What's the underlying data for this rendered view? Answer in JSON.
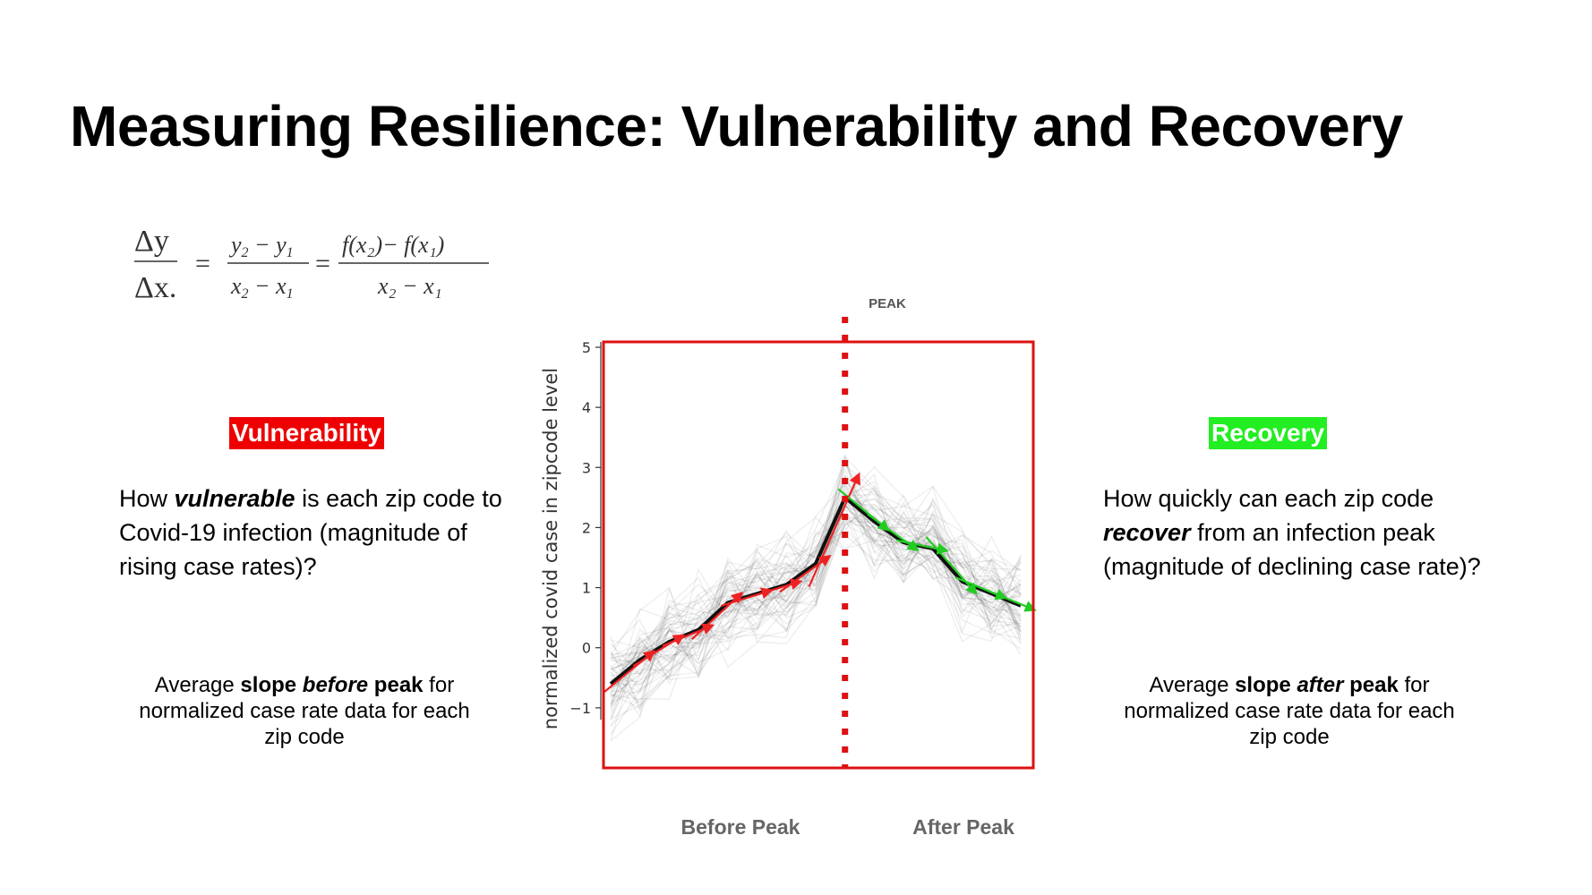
{
  "title": "Measuring Resilience: Vulnerability and Recovery",
  "formula": {
    "lhs_num": "Δy",
    "lhs_den": "Δx.",
    "mid_num_y2": "y",
    "mid_num_sub2": "2",
    "mid_num_minus": " − ",
    "mid_num_y1": "y",
    "mid_num_sub1": "1",
    "mid_den_x2": "x",
    "mid_den_x1": "x",
    "rhs_num": "f(x₂)− f(x₁)",
    "rhs_den": "x₂ − x₁",
    "equals": "="
  },
  "vulnerability": {
    "badge": "Vulnerability",
    "color": "#ee0000",
    "question_before": "How ",
    "question_em": "vulnerable",
    "question_after": " is each zip code to Covid-19 infection (magnitude of rising case rates)?",
    "note_1": "Average ",
    "note_2": "slope ",
    "note_3": "before",
    "note_4": " peak",
    "note_5": " for normalized case rate data for each zip code"
  },
  "recovery": {
    "badge": "Recovery",
    "color": "#22ee22",
    "question_before": "How quickly can each zip code ",
    "question_em": "recover",
    "question_after": " from an infection peak (magnitude of declining case rate)?",
    "note_1": "Average ",
    "note_2": "slope ",
    "note_3": "after",
    "note_4": " peak",
    "note_5": " for normalized case rate data for each zip code"
  },
  "chart_data": {
    "type": "line",
    "ylabel": "normalized covid case in zipcode level",
    "yticks": [
      "5",
      "4",
      "3",
      "2",
      "1",
      "0",
      "−1"
    ],
    "ylim": [
      -2,
      5
    ],
    "peak_label": "PEAK",
    "before_label": "Before Peak",
    "after_label": "After Peak",
    "frame_color": "#dd1111",
    "x": [
      0,
      1,
      2,
      3,
      4,
      5,
      6,
      7,
      8,
      9,
      10,
      11,
      12,
      13,
      14
    ],
    "mean_series": {
      "name": "",
      "values": [
        -0.6,
        -0.2,
        0.1,
        0.3,
        0.75,
        0.9,
        1.05,
        1.4,
        2.5,
        2.1,
        1.75,
        1.65,
        1.1,
        0.9,
        0.7
      ]
    },
    "peak_index": 8,
    "before_slope_color": "#ee2222",
    "after_slope_color": "#22cc22"
  }
}
